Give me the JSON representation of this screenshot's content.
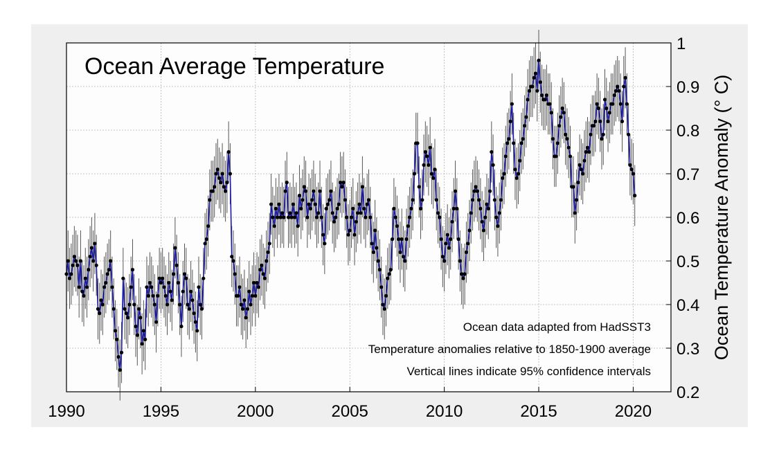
{
  "chart_data": {
    "type": "line",
    "title": "Ocean Average Temperature",
    "xlabel": "",
    "ylabel": "Ocean Temperature Anomaly (° C)",
    "xlim": [
      1990,
      2022
    ],
    "ylim": [
      0.2,
      1.0
    ],
    "x_ticks": [
      "1990",
      "1995",
      "2000",
      "2005",
      "2010",
      "2015",
      "2020"
    ],
    "y_ticks": [
      "0.2",
      "0.3",
      "0.4",
      "0.5",
      "0.6",
      "0.7",
      "0.8",
      "0.9",
      "1"
    ],
    "grid": true,
    "y_axis_side": "right",
    "ci_halfwidth": 0.07,
    "annotations": [
      "Ocean data adapted from HadSST3",
      "Temperature anomalies relative to 1850-1900 average",
      "Vertical lines indicate 95% confidence intervals"
    ],
    "colors": {
      "line": "#1a1aa8",
      "marker": "#000000",
      "errorbar": "#555555",
      "grid": "#b3b3b3"
    },
    "series": [
      {
        "x_start": 1990.0,
        "x_step": 0.0833333,
        "values": [
          0.47,
          0.5,
          0.46,
          0.47,
          0.49,
          0.51,
          0.5,
          0.49,
          0.44,
          0.5,
          0.43,
          0.42,
          0.46,
          0.44,
          0.48,
          0.51,
          0.53,
          0.5,
          0.54,
          0.49,
          0.39,
          0.38,
          0.41,
          0.4,
          0.44,
          0.45,
          0.47,
          0.48,
          0.5,
          0.44,
          0.39,
          0.34,
          0.32,
          0.28,
          0.25,
          0.29,
          0.46,
          0.39,
          0.38,
          0.37,
          0.4,
          0.44,
          0.48,
          0.4,
          0.35,
          0.33,
          0.39,
          0.37,
          0.31,
          0.34,
          0.32,
          0.44,
          0.42,
          0.45,
          0.44,
          0.42,
          0.4,
          0.36,
          0.42,
          0.46,
          0.45,
          0.46,
          0.44,
          0.42,
          0.4,
          0.45,
          0.43,
          0.41,
          0.47,
          0.53,
          0.49,
          0.45,
          0.4,
          0.35,
          0.43,
          0.47,
          0.46,
          0.4,
          0.39,
          0.43,
          0.41,
          0.38,
          0.36,
          0.34,
          0.44,
          0.4,
          0.39,
          0.46,
          0.54,
          0.55,
          0.58,
          0.64,
          0.66,
          0.66,
          0.67,
          0.7,
          0.71,
          0.69,
          0.68,
          0.7,
          0.67,
          0.66,
          0.68,
          0.75,
          0.7,
          0.51,
          0.5,
          0.47,
          0.42,
          0.42,
          0.44,
          0.4,
          0.39,
          0.41,
          0.37,
          0.39,
          0.43,
          0.4,
          0.42,
          0.45,
          0.42,
          0.45,
          0.44,
          0.48,
          0.49,
          0.47,
          0.46,
          0.5,
          0.52,
          0.54,
          0.63,
          0.6,
          0.58,
          0.62,
          0.6,
          0.63,
          0.6,
          0.61,
          0.6,
          0.66,
          0.68,
          0.6,
          0.61,
          0.6,
          0.63,
          0.6,
          0.61,
          0.58,
          0.65,
          0.62,
          0.64,
          0.67,
          0.66,
          0.6,
          0.63,
          0.62,
          0.64,
          0.66,
          0.63,
          0.6,
          0.61,
          0.66,
          0.6,
          0.56,
          0.54,
          0.62,
          0.63,
          0.64,
          0.66,
          0.61,
          0.59,
          0.6,
          0.62,
          0.63,
          0.68,
          0.67,
          0.68,
          0.64,
          0.6,
          0.56,
          0.57,
          0.6,
          0.62,
          0.56,
          0.59,
          0.61,
          0.63,
          0.61,
          0.67,
          0.62,
          0.6,
          0.63,
          0.64,
          0.6,
          0.54,
          0.52,
          0.57,
          0.53,
          0.5,
          0.48,
          0.44,
          0.4,
          0.39,
          0.42,
          0.46,
          0.47,
          0.48,
          0.55,
          0.62,
          0.6,
          0.58,
          0.55,
          0.52,
          0.55,
          0.51,
          0.5,
          0.55,
          0.58,
          0.6,
          0.62,
          0.64,
          0.7,
          0.77,
          0.77,
          0.67,
          0.62,
          0.64,
          0.72,
          0.75,
          0.74,
          0.72,
          0.76,
          0.7,
          0.69,
          0.71,
          0.64,
          0.61,
          0.6,
          0.55,
          0.51,
          0.5,
          0.54,
          0.56,
          0.53,
          0.55,
          0.59,
          0.62,
          0.66,
          0.62,
          0.55,
          0.5,
          0.47,
          0.46,
          0.47,
          0.52,
          0.54,
          0.57,
          0.61,
          0.64,
          0.66,
          0.67,
          0.66,
          0.64,
          0.62,
          0.59,
          0.57,
          0.6,
          0.63,
          0.62,
          0.66,
          0.75,
          0.72,
          0.64,
          0.6,
          0.58,
          0.61,
          0.64,
          0.69,
          0.7,
          0.74,
          0.77,
          0.78,
          0.82,
          0.86,
          0.77,
          0.71,
          0.69,
          0.7,
          0.73,
          0.77,
          0.78,
          0.81,
          0.83,
          0.87,
          0.89,
          0.9,
          0.9,
          0.92,
          0.93,
          0.89,
          0.96,
          0.91,
          0.88,
          0.87,
          0.87,
          0.88,
          0.86,
          0.86,
          0.84,
          0.78,
          0.74,
          0.74,
          0.77,
          0.81,
          0.83,
          0.85,
          0.84,
          0.79,
          0.78,
          0.76,
          0.74,
          0.67,
          0.67,
          0.61,
          0.64,
          0.68,
          0.72,
          0.71,
          0.7,
          0.73,
          0.75,
          0.76,
          0.75,
          0.79,
          0.81,
          0.81,
          0.82,
          0.86,
          0.85,
          0.82,
          0.78,
          0.79,
          0.87,
          0.85,
          0.82,
          0.84,
          0.86,
          0.86,
          0.88,
          0.89,
          0.9,
          0.89,
          0.86,
          0.82,
          0.9,
          0.92,
          0.86,
          0.79,
          0.72,
          0.71,
          0.7,
          0.65
        ]
      }
    ]
  }
}
